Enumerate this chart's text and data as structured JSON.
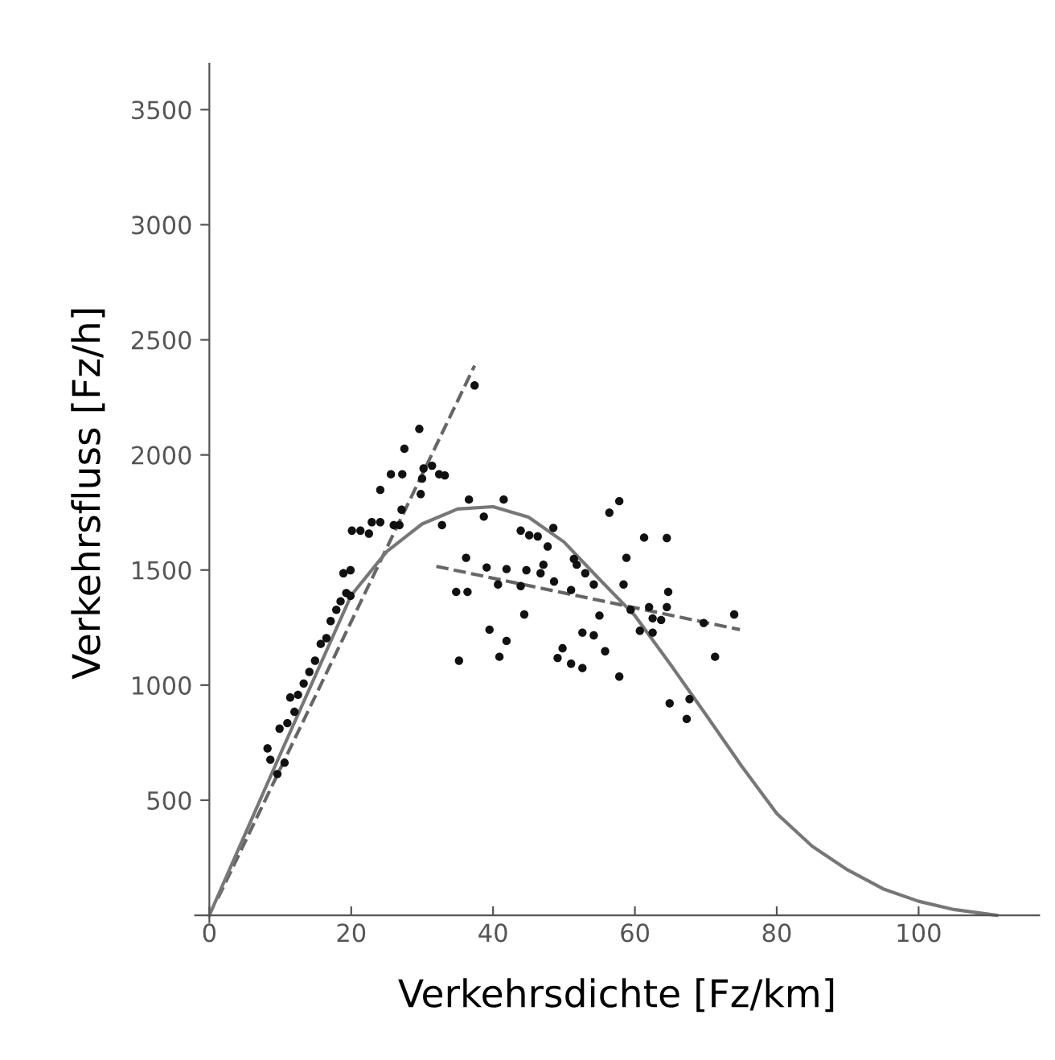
{
  "chart_data": {
    "type": "scatter",
    "xlabel": "Verkehrsdichte [Fz/km]",
    "ylabel": "Verkehrsfluss [Fz/h]",
    "xlim": [
      -2,
      117
    ],
    "ylim": [
      -30,
      3700
    ],
    "xticks": [
      0,
      20,
      40,
      60,
      80,
      100
    ],
    "yticks": [
      500,
      1000,
      1500,
      2000,
      2500,
      3000,
      3500
    ],
    "grid": false,
    "legend": false,
    "series": [
      {
        "color": "#111111",
        "marker": "circle",
        "x": [
          8.2,
          8.6,
          9.6,
          10.6,
          9.9,
          11,
          12,
          11.4,
          12.5,
          13.3,
          14.1,
          14.9,
          15.7,
          16.5,
          17.1,
          17.9,
          18.5,
          19.3,
          19.9,
          18.9,
          19.9,
          20.1,
          21.3,
          22.5,
          22.9,
          24.1,
          24.1,
          26,
          26.8,
          27.1,
          27.2,
          25.6,
          27.5,
          29.6,
          29.8,
          30,
          30.2,
          31.4,
          32.4,
          33.2,
          32.8,
          37.4
        ],
        "values": [
          725,
          676,
          614,
          663,
          811,
          835,
          884,
          946,
          958,
          1007,
          1057,
          1106,
          1179,
          1204,
          1278,
          1327,
          1364,
          1400,
          1388,
          1486,
          1499,
          1671,
          1671,
          1658,
          1708,
          1708,
          1848,
          1695,
          1695,
          1762,
          1916,
          1916,
          2027,
          2113,
          1830,
          1897,
          1941,
          1953,
          1916,
          1911,
          1695,
          2302
        ]
      },
      {
        "color": "#111111",
        "marker": "circle",
        "x": [
          36.6,
          38.7,
          41.5,
          43.9,
          45.1,
          46.3,
          47.7,
          48.5,
          35.2,
          34.8,
          36.4,
          36.2,
          39.1,
          39.5,
          40.9,
          41.9,
          41.9,
          40.7,
          43.9,
          44.4,
          44.7,
          46.7,
          47.1,
          48.6,
          49.1,
          49.8,
          51,
          52.6,
          51.4,
          51.8,
          51,
          53,
          54.2,
          52.6,
          54.2,
          55,
          55.8,
          56.4,
          57.8,
          57.8,
          58.4,
          58.8,
          59.4,
          60.7,
          61.3,
          62,
          62.5,
          62.5,
          63.7,
          64.5,
          64.7,
          64.5,
          64.9,
          67.3,
          67.7,
          69.7,
          71.3,
          74
        ],
        "values": [
          1806,
          1732,
          1806,
          1671,
          1651,
          1646,
          1602,
          1683,
          1106,
          1405,
          1405,
          1553,
          1511,
          1241,
          1123,
          1192,
          1504,
          1437,
          1430,
          1307,
          1499,
          1486,
          1523,
          1450,
          1118,
          1160,
          1093,
          1074,
          1548,
          1523,
          1413,
          1486,
          1437,
          1228,
          1216,
          1302,
          1147,
          1749,
          1799,
          1037,
          1437,
          1553,
          1327,
          1236,
          1641,
          1339,
          1228,
          1290,
          1283,
          1339,
          1405,
          1639,
          921,
          853,
          939,
          1270,
          1123,
          1307
        ]
      },
      {
        "type": "line",
        "color": "#666666",
        "line_style": "dashed",
        "marker": "none",
        "x": [
          1.2,
          37.4
        ],
        "values": [
          74,
          2388
        ]
      },
      {
        "type": "line",
        "color": "#666666",
        "line_style": "dashed",
        "marker": "none",
        "x": [
          32,
          74.8
        ],
        "values": [
          1516,
          1241
        ]
      },
      {
        "type": "line",
        "color": "#777777",
        "line_style": "solid",
        "marker": "none",
        "x": [
          0,
          10,
          20,
          25,
          30,
          35,
          40,
          45,
          50,
          55,
          60,
          65,
          70,
          75,
          80,
          85,
          90,
          95,
          100,
          105,
          111
        ],
        "values": [
          0,
          700,
          1390,
          1580,
          1700,
          1765,
          1775,
          1730,
          1622,
          1460,
          1302,
          1090,
          872,
          650,
          442,
          300,
          197,
          115,
          61,
          25,
          0
        ]
      }
    ]
  }
}
